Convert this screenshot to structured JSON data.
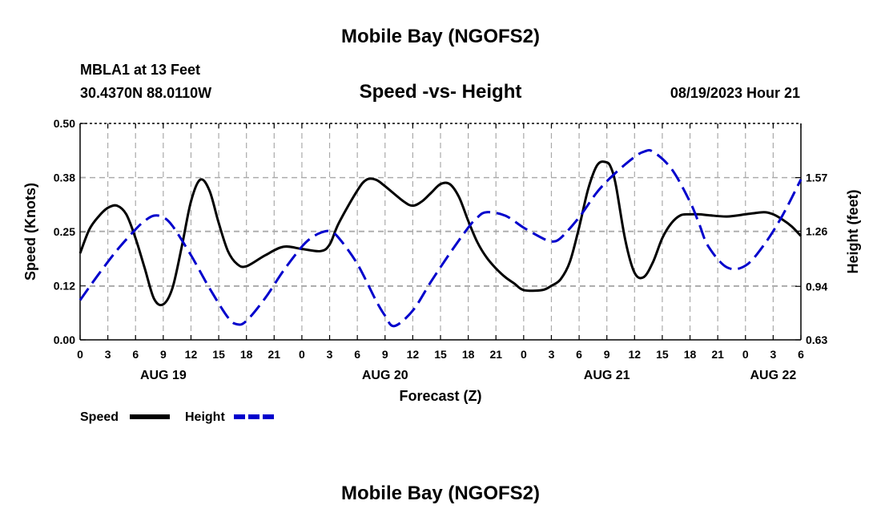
{
  "page_title": "Mobile Bay (NGOFS2)",
  "station": "MBLA1 at 13 Feet",
  "coordinates": "30.4370N  88.0110W",
  "footer_title": "Mobile Bay (NGOFS2)",
  "colors": {
    "speed": "#000000",
    "height": "#0000cc",
    "grid": "#aaaaaa"
  },
  "chart_data": {
    "type": "line",
    "title": "Speed -vs- Height",
    "timestamp": "08/19/2023 Hour 21",
    "xlabel": "Forecast (Z)",
    "ylabel_left": "Speed (Knots)",
    "ylabel_right": "Height (feet)",
    "x_range_hours": [
      0,
      78
    ],
    "x_ticks": [
      0,
      3,
      6,
      9,
      12,
      15,
      18,
      21,
      24,
      27,
      30,
      33,
      36,
      39,
      42,
      45,
      48,
      51,
      54,
      57,
      60,
      63,
      66,
      69,
      72,
      75,
      78
    ],
    "x_tick_labels": [
      "0",
      "3",
      "6",
      "9",
      "12",
      "15",
      "18",
      "21",
      "0",
      "3",
      "6",
      "9",
      "12",
      "15",
      "18",
      "21",
      "0",
      "3",
      "6",
      "9",
      "12",
      "15",
      "18",
      "21",
      "0",
      "3",
      "6"
    ],
    "date_labels": [
      {
        "hour": 9,
        "label": "AUG 19"
      },
      {
        "hour": 33,
        "label": "AUG 20"
      },
      {
        "hour": 57,
        "label": "AUG 21"
      },
      {
        "hour": 75,
        "label": "AUG 22"
      }
    ],
    "ylim_left": [
      0,
      0.5
    ],
    "y_ticks_left": [
      0.0,
      0.125,
      0.25,
      0.375,
      0.5
    ],
    "y_tick_labels_left": [
      "0.00",
      "0.12",
      "0.25",
      "0.38",
      "0.50"
    ],
    "ylim_right": [
      0.63,
      1.884
    ],
    "y_ticks_right": [
      0.63,
      0.94,
      1.26,
      1.57
    ],
    "y_tick_labels_right": [
      "0.63",
      "0.94",
      "1.26",
      "1.57"
    ],
    "grid": true,
    "legend": [
      {
        "name": "Speed",
        "style": "solid"
      },
      {
        "name": "Height",
        "style": "dashed"
      }
    ],
    "series": [
      {
        "name": "Speed",
        "axis": "left",
        "color": "#000000",
        "dash": false,
        "x": [
          0,
          1,
          2,
          3,
          4,
          5,
          6,
          7,
          8,
          9,
          10,
          11,
          12,
          13,
          14,
          15,
          16,
          17,
          18,
          20,
          22,
          24,
          26,
          27,
          28,
          30,
          31,
          32,
          33,
          35,
          36,
          37,
          38,
          39,
          40,
          41,
          42,
          43,
          44,
          45,
          46,
          47,
          48,
          50,
          51,
          52,
          53,
          54,
          55,
          56,
          57,
          57.5,
          58,
          59,
          60,
          61,
          62,
          63,
          64,
          65,
          66,
          67,
          68,
          70,
          72,
          74,
          75,
          76,
          77,
          78
        ],
        "values": [
          0.2,
          0.255,
          0.285,
          0.305,
          0.31,
          0.29,
          0.235,
          0.165,
          0.095,
          0.082,
          0.12,
          0.215,
          0.32,
          0.37,
          0.345,
          0.27,
          0.205,
          0.175,
          0.17,
          0.195,
          0.215,
          0.21,
          0.205,
          0.22,
          0.27,
          0.345,
          0.37,
          0.37,
          0.355,
          0.32,
          0.31,
          0.32,
          0.34,
          0.36,
          0.36,
          0.33,
          0.275,
          0.225,
          0.19,
          0.165,
          0.145,
          0.13,
          0.115,
          0.115,
          0.125,
          0.14,
          0.18,
          0.26,
          0.35,
          0.405,
          0.41,
          0.395,
          0.355,
          0.23,
          0.155,
          0.145,
          0.18,
          0.235,
          0.27,
          0.288,
          0.29,
          0.29,
          0.288,
          0.285,
          0.29,
          0.295,
          0.29,
          0.278,
          0.262,
          0.24
        ]
      },
      {
        "name": "Height",
        "axis": "right",
        "color": "#0000cc",
        "dash": true,
        "x": [
          0,
          2,
          4,
          6,
          7,
          8,
          9,
          10,
          12,
          14,
          16,
          17,
          18,
          20,
          22,
          24,
          25,
          26,
          27,
          28,
          30,
          32,
          33,
          34,
          36,
          38,
          40,
          42,
          43,
          44,
          46,
          48,
          50,
          51,
          52,
          54,
          56,
          58,
          60,
          61,
          62,
          64,
          66,
          67,
          68,
          70,
          72,
          74,
          76,
          78
        ],
        "values": [
          0.86,
          1.01,
          1.15,
          1.27,
          1.32,
          1.35,
          1.34,
          1.29,
          1.12,
          0.93,
          0.76,
          0.72,
          0.74,
          0.87,
          1.03,
          1.17,
          1.22,
          1.25,
          1.26,
          1.22,
          1.07,
          0.86,
          0.77,
          0.71,
          0.8,
          0.97,
          1.13,
          1.28,
          1.34,
          1.37,
          1.35,
          1.28,
          1.22,
          1.2,
          1.22,
          1.34,
          1.49,
          1.6,
          1.69,
          1.72,
          1.72,
          1.62,
          1.43,
          1.3,
          1.17,
          1.05,
          1.06,
          1.18,
          1.35,
          1.56
        ]
      }
    ]
  }
}
